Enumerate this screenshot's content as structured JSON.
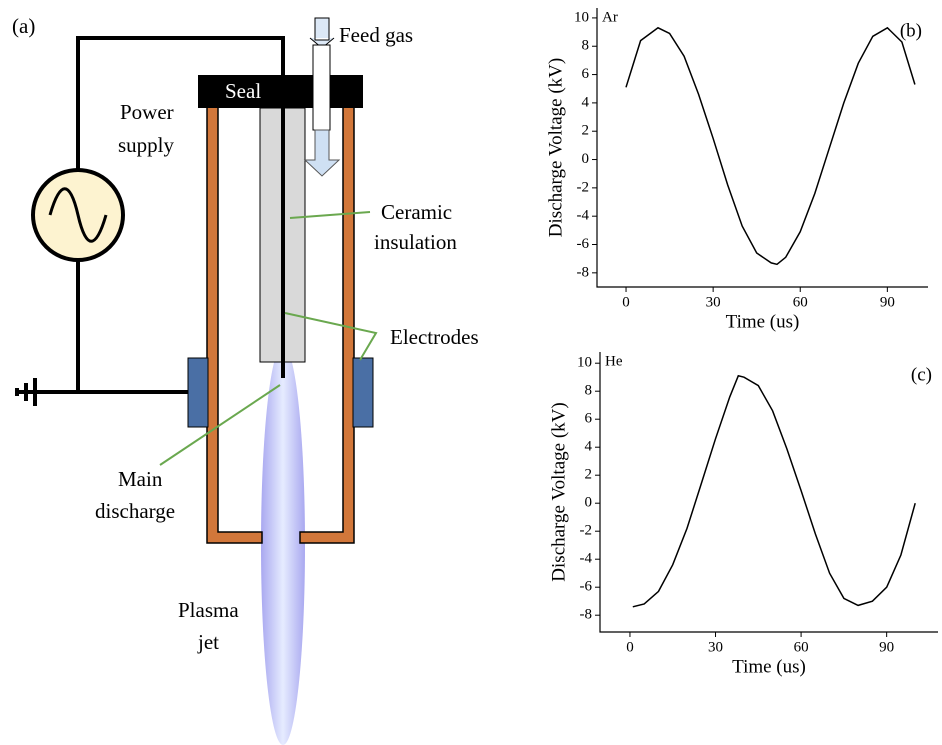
{
  "diagram": {
    "panel": "(a)",
    "feed_gas": "Feed gas",
    "seal": "Seal",
    "power_supply": [
      "Power",
      "supply"
    ],
    "ceramic_insulation": [
      "Ceramic",
      "insulation"
    ],
    "electrodes": "Electrodes",
    "main_discharge": [
      "Main",
      "discharge"
    ],
    "plasma_jet": [
      "Plasma",
      "jet"
    ]
  },
  "chart_data": [
    {
      "type": "line",
      "annotations": [
        "Ar",
        "(b)"
      ],
      "x_label": "Time (us)",
      "y_label": "Discharge Voltage (kV)",
      "x": [
        0,
        5,
        11,
        15,
        20,
        25,
        30,
        35,
        40,
        45,
        50,
        52,
        55,
        60,
        65,
        70,
        75,
        80,
        85,
        90,
        95,
        99.5
      ],
      "series": [
        {
          "color": "#000000",
          "values": [
            5.1,
            8.4,
            9.3,
            8.9,
            7.3,
            4.6,
            1.5,
            -1.8,
            -4.7,
            -6.6,
            -7.3,
            -7.4,
            -6.9,
            -5.1,
            -2.4,
            0.8,
            4.0,
            6.8,
            8.7,
            9.3,
            8.3,
            5.3
          ]
        }
      ],
      "xlim": [
        -10,
        104
      ],
      "ylim": [
        -9,
        10.7
      ],
      "xticks": [
        0,
        30,
        60,
        90
      ],
      "yticks": [
        -8,
        -6,
        -4,
        -2,
        0,
        2,
        4,
        6,
        8,
        10
      ]
    },
    {
      "type": "line",
      "annotations": [
        "He",
        "(c)"
      ],
      "x_label": "Time (us)",
      "y_label": "Discharge Voltage (kV)",
      "x": [
        1,
        5,
        10,
        15,
        20,
        25,
        30,
        35,
        38,
        40,
        45,
        50,
        55,
        60,
        65,
        70,
        75,
        80,
        85,
        90,
        95,
        100
      ],
      "series": [
        {
          "color": "#000000",
          "values": [
            -7.4,
            -7.2,
            -6.3,
            -4.4,
            -1.8,
            1.4,
            4.6,
            7.6,
            9.1,
            9.0,
            8.4,
            6.6,
            3.9,
            0.9,
            -2.2,
            -5.0,
            -6.8,
            -7.3,
            -7.0,
            -6.0,
            -3.7,
            0.0
          ]
        }
      ],
      "xlim": [
        -10.5,
        108
      ],
      "ylim": [
        -9.2,
        10.8
      ],
      "xticks": [
        0,
        30,
        60,
        90
      ],
      "yticks": [
        -8,
        -6,
        -4,
        -2,
        0,
        2,
        4,
        6,
        8,
        10
      ]
    }
  ]
}
